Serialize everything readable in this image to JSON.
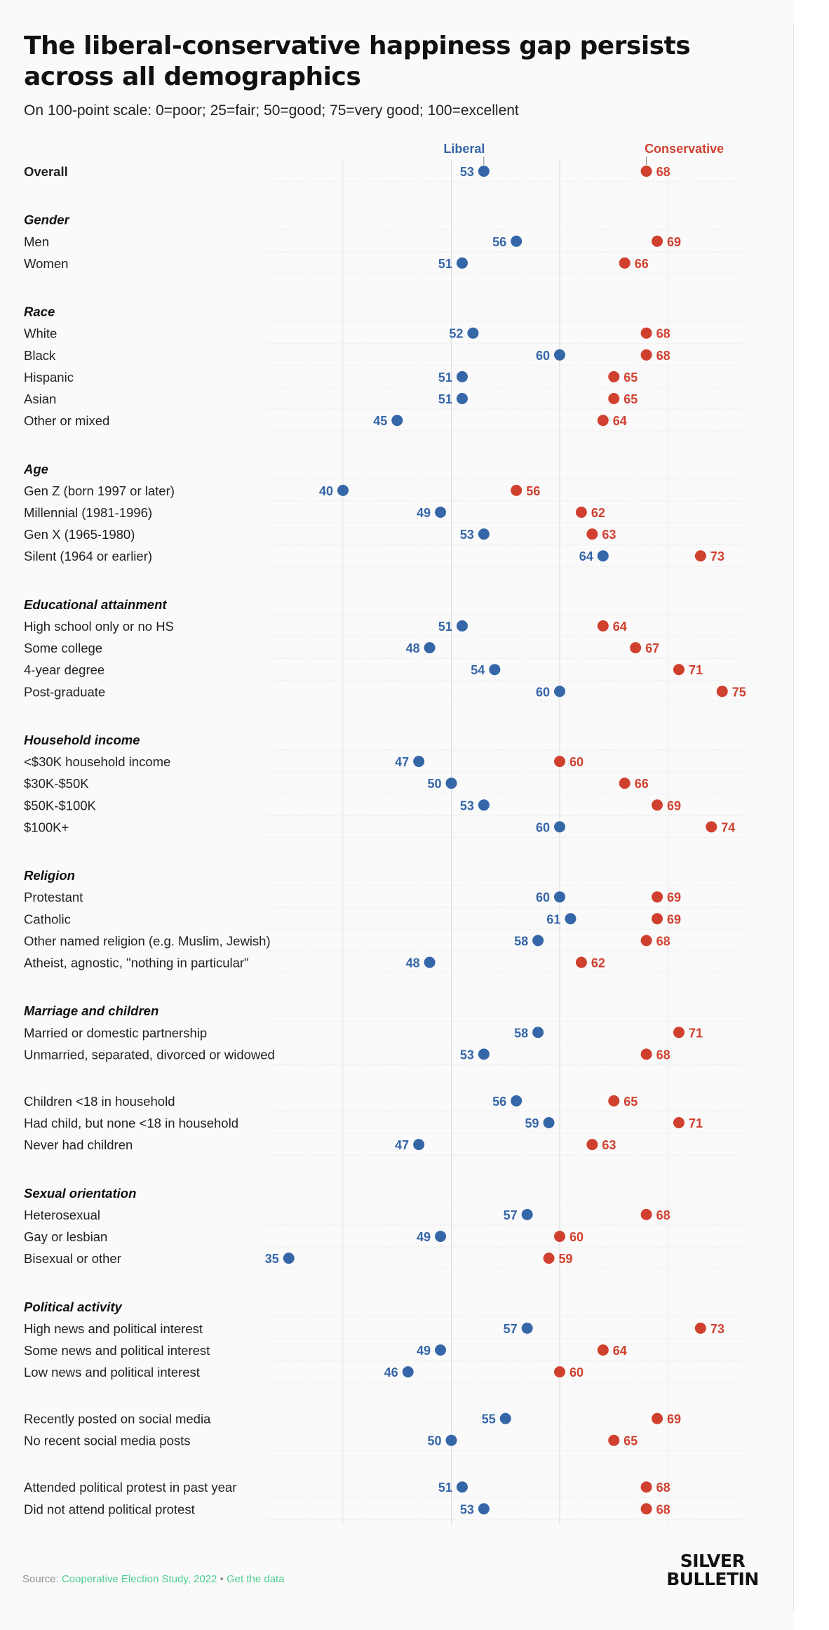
{
  "title": "The liberal-conservative happiness gap persists across all demographics",
  "subtitle": "On 100-point scale: 0=poor; 25=fair; 50=good; 75=very good; 100=excellent",
  "source": {
    "prefix": "Source: ",
    "dataset": "Cooperative Election Study, 2022",
    "separator": " • ",
    "link": "Get the data"
  },
  "logo": {
    "line1": "SILVER",
    "line2": "BULLETIN"
  },
  "colors": {
    "liberal": "#3566a8",
    "conservative": "#d0402f",
    "link": "#4ccf8e"
  },
  "chart_data": {
    "type": "dumbbell",
    "series": [
      {
        "name": "Liberal",
        "color": "#3566a8"
      },
      {
        "name": "Conservative",
        "color": "#d0402f"
      }
    ],
    "xticks": [
      40,
      50,
      60,
      70
    ],
    "grid": true,
    "legend": "top, labelled at the first row",
    "rows": [
      {
        "label": "Overall",
        "liberal": 53,
        "conservative": 68,
        "bold": true
      },
      {
        "header": "Gender"
      },
      {
        "label": "Men",
        "liberal": 56,
        "conservative": 69
      },
      {
        "label": "Women",
        "liberal": 51,
        "conservative": 66
      },
      {
        "header": "Race"
      },
      {
        "label": "White",
        "liberal": 52,
        "conservative": 68
      },
      {
        "label": "Black",
        "liberal": 60,
        "conservative": 68
      },
      {
        "label": "Hispanic",
        "liberal": 51,
        "conservative": 65
      },
      {
        "label": "Asian",
        "liberal": 51,
        "conservative": 65
      },
      {
        "label": "Other or mixed",
        "liberal": 45,
        "conservative": 64
      },
      {
        "header": "Age"
      },
      {
        "label": "Gen Z (born 1997 or later)",
        "liberal": 40,
        "conservative": 56
      },
      {
        "label": "Millennial (1981-1996)",
        "liberal": 49,
        "conservative": 62
      },
      {
        "label": "Gen X (1965-1980)",
        "liberal": 53,
        "conservative": 63
      },
      {
        "label": "Silent (1964 or earlier)",
        "liberal": 64,
        "conservative": 73
      },
      {
        "header": "Educational attainment"
      },
      {
        "label": "High school only or no HS",
        "liberal": 51,
        "conservative": 64
      },
      {
        "label": "Some college",
        "liberal": 48,
        "conservative": 67
      },
      {
        "label": "4-year degree",
        "liberal": 54,
        "conservative": 71
      },
      {
        "label": "Post-graduate",
        "liberal": 60,
        "conservative": 75
      },
      {
        "header": "Household income"
      },
      {
        "label": "<$30K household income",
        "liberal": 47,
        "conservative": 60
      },
      {
        "label": "$30K-$50K",
        "liberal": 50,
        "conservative": 66
      },
      {
        "label": "$50K-$100K",
        "liberal": 53,
        "conservative": 69
      },
      {
        "label": "$100K+",
        "liberal": 60,
        "conservative": 74
      },
      {
        "header": "Religion"
      },
      {
        "label": "Protestant",
        "liberal": 60,
        "conservative": 69
      },
      {
        "label": "Catholic",
        "liberal": 61,
        "conservative": 69
      },
      {
        "label": "Other named religion (e.g. Muslim, Jewish)",
        "liberal": 58,
        "conservative": 68
      },
      {
        "label": "Atheist, agnostic, \"nothing in particular\"",
        "liberal": 48,
        "conservative": 62
      },
      {
        "header": "Marriage and children"
      },
      {
        "label": "Married or domestic partnership",
        "liberal": 58,
        "conservative": 71
      },
      {
        "label": "Unmarried, separated, divorced or widowed",
        "liberal": 53,
        "conservative": 68
      },
      {
        "label": "Children <18 in household",
        "liberal": 56,
        "conservative": 65
      },
      {
        "label": "Had child, but none <18 in household",
        "liberal": 59,
        "conservative": 71
      },
      {
        "label": "Never had children",
        "liberal": 47,
        "conservative": 63
      },
      {
        "header": "Sexual orientation"
      },
      {
        "label": "Heterosexual",
        "liberal": 57,
        "conservative": 68
      },
      {
        "label": "Gay or lesbian",
        "liberal": 49,
        "conservative": 60
      },
      {
        "label": "Bisexual or other",
        "liberal": 35,
        "conservative": 59
      },
      {
        "header": "Political activity"
      },
      {
        "label": "High news and political interest",
        "liberal": 57,
        "conservative": 73
      },
      {
        "label": "Some news and political interest",
        "liberal": 49,
        "conservative": 64
      },
      {
        "label": "Low news and political interest",
        "liberal": 46,
        "conservative": 60
      },
      {
        "label": "Recently posted on social media",
        "liberal": 55,
        "conservative": 69
      },
      {
        "label": "No recent social media posts",
        "liberal": 50,
        "conservative": 65
      },
      {
        "label": "Attended political protest in past year",
        "liberal": 51,
        "conservative": 68
      },
      {
        "label": "Did not attend political protest",
        "liberal": 53,
        "conservative": 68
      }
    ]
  }
}
